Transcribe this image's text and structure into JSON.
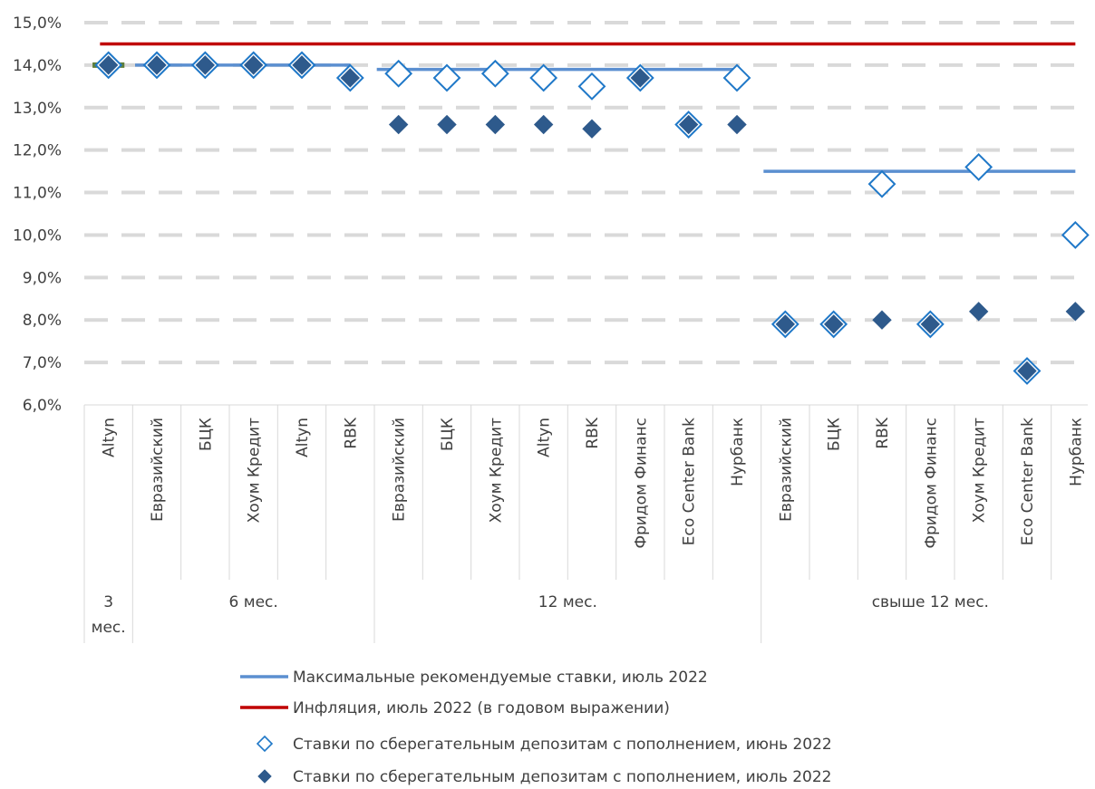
{
  "chart_data": {
    "type": "scatter",
    "y_tick_labels": [
      "6,0%",
      "7,0%",
      "8,0%",
      "9,0%",
      "10,0%",
      "11,0%",
      "12,0%",
      "13,0%",
      "14,0%",
      "15,0%"
    ],
    "ylim": [
      6,
      15
    ],
    "grid": true,
    "legend_position": "bottom",
    "categories": [
      "Altyn",
      "Евразийский",
      "БЦК",
      "Хоум Кредит",
      "Altyn",
      "RBK",
      "Евразийский",
      "БЦК",
      "Хоум Кредит",
      "Altyn",
      "RBK",
      "Фридом Финанс",
      "Eco Center Bank",
      "Нурбанк",
      "Евразийский",
      "БЦК",
      "RBK",
      "Фридом Финанс",
      "Хоум Кредит",
      "Eco Center Bank",
      "Нурбанк"
    ],
    "groups": [
      {
        "label": "3 мес.",
        "start": 0,
        "end": 0
      },
      {
        "label": "6 мес.",
        "start": 1,
        "end": 5
      },
      {
        "label": "12 мес.",
        "start": 6,
        "end": 13
      },
      {
        "label": "свыше 12 мес.",
        "start": 14,
        "end": 20
      }
    ],
    "series": [
      {
        "name": "Максимальные рекомендуемые ставки, июль 2022",
        "kind": "segments",
        "color": "#5b8fd0",
        "segments": [
          {
            "start": 0,
            "end": 0,
            "value": 14.0,
            "color": "#5f7f3a"
          },
          {
            "start": 1,
            "end": 5,
            "value": 14.0
          },
          {
            "start": 6,
            "end": 13,
            "value": 13.9
          },
          {
            "start": 14,
            "end": 20,
            "value": 11.5
          }
        ]
      },
      {
        "name": "Инфляция, июль 2022 (в годовом выражении)",
        "kind": "line",
        "color": "#c00000",
        "value": 14.5
      },
      {
        "name": "Ставки по сберегательным депозитам с пополнением, июнь 2022",
        "kind": "marker-open",
        "color": "#1f78c8",
        "values": [
          14.0,
          14.0,
          14.0,
          14.0,
          14.0,
          13.7,
          13.8,
          13.7,
          13.8,
          13.7,
          13.5,
          13.7,
          12.6,
          13.7,
          7.9,
          7.9,
          11.2,
          7.9,
          11.6,
          6.8,
          10.0
        ]
      },
      {
        "name": "Ставки по сберегательным депозитам с пополнением, июль 2022",
        "kind": "marker-filled",
        "color": "#2e5a8c",
        "values": [
          14.0,
          14.0,
          14.0,
          14.0,
          14.0,
          13.7,
          12.6,
          12.6,
          12.6,
          12.6,
          12.5,
          13.7,
          12.6,
          12.6,
          7.9,
          7.9,
          8.0,
          7.9,
          8.2,
          6.8,
          8.2
        ]
      }
    ]
  }
}
